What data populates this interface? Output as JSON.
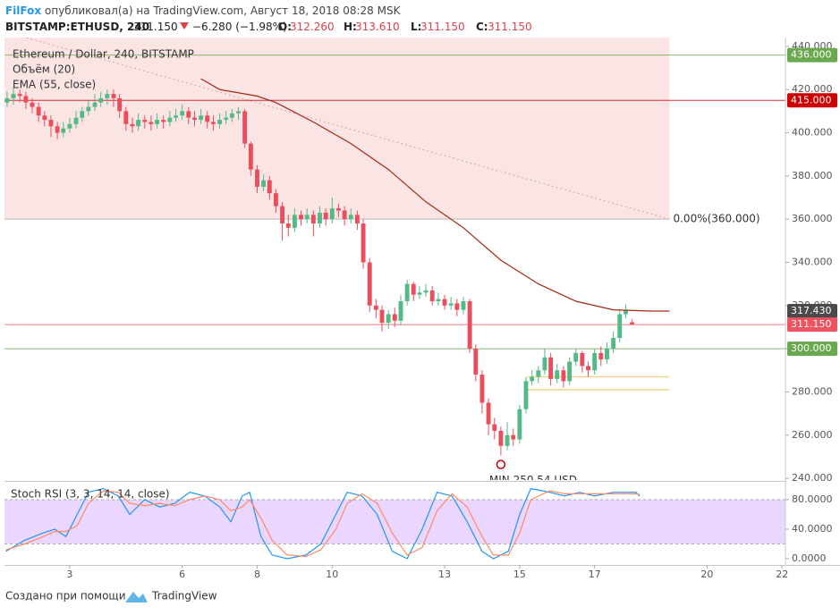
{
  "header": {
    "author": "FilFox",
    "published": "опубликовал(а) на TradingView.com, Август 18, 2018 08:28 MSK",
    "symbol": "BITSTAMP:ETHUSD, 240",
    "last": "311.150",
    "change": "−6.280 (−1.98%)",
    "ohlc": [
      {
        "label": "O:",
        "value": "312.260"
      },
      {
        "label": "H:",
        "value": "313.610"
      },
      {
        "label": "L:",
        "value": "311.150"
      },
      {
        "label": "C:",
        "value": "311.150"
      }
    ]
  },
  "footer": {
    "text": "Создано при помощи",
    "brand": "TradingView"
  },
  "chart_data": {
    "type": "candlestick",
    "title": "Ethereum / Dollar, 240, BITSTAMP",
    "volume_label": "Объём (20)",
    "up_color": "#53b987",
    "down_color": "#eb4d5c",
    "xlim": [
      1.26,
      22.09
    ],
    "xticks": [
      3,
      6,
      8,
      10,
      13,
      15,
      17,
      20,
      22
    ],
    "ylim": [
      239.2,
      444.1
    ],
    "yticks": [
      {
        "value": 240,
        "label": "240.000"
      },
      {
        "value": 260,
        "label": "260.000"
      },
      {
        "value": 280,
        "label": "280.000"
      },
      {
        "value": 300,
        "label": "300.000"
      },
      {
        "value": 320,
        "label": "320.000"
      },
      {
        "value": 340,
        "label": "340.000"
      },
      {
        "value": 360,
        "label": "360.000"
      },
      {
        "value": 380,
        "label": "380.000"
      },
      {
        "value": 400,
        "label": "400.000"
      },
      {
        "value": 420,
        "label": "420.000"
      },
      {
        "value": 440,
        "label": "440.000"
      }
    ],
    "candles": [
      [
        1.33,
        414,
        419,
        412,
        416
      ],
      [
        1.5,
        416,
        421,
        413,
        418
      ],
      [
        1.67,
        418,
        420,
        414,
        417
      ],
      [
        1.83,
        417,
        419,
        411,
        414
      ],
      [
        2,
        414,
        416,
        409,
        412
      ],
      [
        2.17,
        412,
        414,
        405,
        408
      ],
      [
        2.33,
        408,
        410,
        403,
        406
      ],
      [
        2.5,
        406,
        408,
        398,
        403
      ],
      [
        2.67,
        403,
        405,
        397,
        400
      ],
      [
        2.83,
        400,
        405,
        398,
        402
      ],
      [
        3,
        402,
        407,
        400,
        404
      ],
      [
        3.17,
        404,
        410,
        402,
        407
      ],
      [
        3.33,
        407,
        412,
        405,
        410
      ],
      [
        3.5,
        410,
        415,
        408,
        412
      ],
      [
        3.67,
        412,
        418,
        410,
        414
      ],
      [
        3.83,
        414,
        419,
        412,
        416
      ],
      [
        4,
        416,
        420,
        413,
        418
      ],
      [
        4.17,
        418,
        420,
        412,
        416
      ],
      [
        4.33,
        416,
        418,
        407,
        410
      ],
      [
        4.5,
        410,
        412,
        401,
        404
      ],
      [
        4.67,
        404,
        407,
        400,
        403
      ],
      [
        4.83,
        403,
        409,
        401,
        406
      ],
      [
        5,
        406,
        408,
        402,
        405
      ],
      [
        5.17,
        405,
        408,
        401,
        404
      ],
      [
        5.33,
        404,
        409,
        402,
        406
      ],
      [
        5.5,
        406,
        408,
        402,
        405
      ],
      [
        5.67,
        405,
        410,
        403,
        407
      ],
      [
        5.83,
        407,
        411,
        405,
        408
      ],
      [
        6,
        408,
        413,
        406,
        410
      ],
      [
        6.17,
        410,
        412,
        404,
        407
      ],
      [
        6.33,
        407,
        410,
        403,
        406
      ],
      [
        6.5,
        406,
        411,
        404,
        408
      ],
      [
        6.67,
        408,
        410,
        402,
        405
      ],
      [
        6.83,
        405,
        408,
        401,
        404
      ],
      [
        7,
        404,
        409,
        402,
        406
      ],
      [
        7.17,
        406,
        410,
        404,
        407
      ],
      [
        7.33,
        407,
        411,
        405,
        409
      ],
      [
        7.5,
        409,
        412,
        406,
        410
      ],
      [
        7.67,
        410,
        411,
        393,
        395
      ],
      [
        7.83,
        395,
        396,
        380,
        383
      ],
      [
        8,
        383,
        385,
        372,
        375
      ],
      [
        8.17,
        375,
        381,
        373,
        378
      ],
      [
        8.33,
        378,
        380,
        369,
        372
      ],
      [
        8.5,
        372,
        374,
        363,
        366
      ],
      [
        8.67,
        366,
        368,
        350,
        358
      ],
      [
        8.83,
        358,
        362,
        352,
        356
      ],
      [
        9,
        356,
        365,
        354,
        362
      ],
      [
        9.17,
        362,
        364,
        357,
        360
      ],
      [
        9.33,
        360,
        365,
        358,
        362
      ],
      [
        9.5,
        362,
        364,
        352,
        358
      ],
      [
        9.67,
        358,
        366,
        356,
        363
      ],
      [
        9.83,
        363,
        365,
        357,
        360
      ],
      [
        10,
        360,
        370,
        358,
        365
      ],
      [
        10.17,
        365,
        367,
        361,
        364
      ],
      [
        10.33,
        364,
        366,
        357,
        360
      ],
      [
        10.5,
        360,
        365,
        358,
        362
      ],
      [
        10.67,
        362,
        364,
        355,
        358
      ],
      [
        10.83,
        358,
        360,
        337,
        340
      ],
      [
        11,
        340,
        342,
        317,
        320
      ],
      [
        11.17,
        320,
        323,
        314,
        318
      ],
      [
        11.33,
        318,
        320,
        308,
        312
      ],
      [
        11.5,
        312,
        318,
        309,
        316
      ],
      [
        11.67,
        316,
        319,
        310,
        313
      ],
      [
        11.83,
        313,
        325,
        311,
        322
      ],
      [
        12,
        322,
        332,
        320,
        330
      ],
      [
        12.17,
        330,
        331,
        322,
        325
      ],
      [
        12.33,
        325,
        329,
        323,
        326
      ],
      [
        12.5,
        326,
        330,
        324,
        327
      ],
      [
        12.67,
        327,
        329,
        320,
        322
      ],
      [
        12.83,
        322,
        326,
        320,
        323
      ],
      [
        13,
        323,
        325,
        318,
        320
      ],
      [
        13.17,
        320,
        324,
        318,
        321
      ],
      [
        13.33,
        321,
        323,
        315,
        318
      ],
      [
        13.5,
        318,
        324,
        316,
        322
      ],
      [
        13.67,
        322,
        323,
        298,
        300
      ],
      [
        13.83,
        300,
        302,
        285,
        288
      ],
      [
        14,
        288,
        290,
        270,
        275
      ],
      [
        14.17,
        275,
        277,
        260,
        265
      ],
      [
        14.33,
        265,
        268,
        258,
        262
      ],
      [
        14.5,
        262,
        264,
        250.54,
        255
      ],
      [
        14.67,
        255,
        266,
        253,
        260
      ],
      [
        14.83,
        260,
        263,
        255,
        258
      ],
      [
        15,
        258,
        274,
        256,
        272
      ],
      [
        15.17,
        272,
        287,
        270,
        285
      ],
      [
        15.33,
        285,
        290,
        283,
        287
      ],
      [
        15.5,
        287,
        292,
        284,
        290
      ],
      [
        15.67,
        290,
        300,
        288,
        296
      ],
      [
        15.83,
        296,
        298,
        283,
        286
      ],
      [
        16,
        286,
        293,
        284,
        290
      ],
      [
        16.17,
        290,
        292,
        282,
        285
      ],
      [
        16.33,
        285,
        296,
        283,
        294
      ],
      [
        16.5,
        294,
        300,
        292,
        298
      ],
      [
        16.67,
        298,
        299,
        289,
        292
      ],
      [
        16.83,
        292,
        294,
        287,
        290
      ],
      [
        17,
        290,
        300,
        288,
        298
      ],
      [
        17.17,
        298,
        301,
        292,
        295
      ],
      [
        17.33,
        295,
        303,
        293,
        300
      ],
      [
        17.5,
        300,
        308,
        298,
        305
      ],
      [
        17.67,
        305,
        318,
        303,
        316
      ],
      [
        17.83,
        316,
        320.5,
        314,
        318
      ],
      [
        18,
        312.26,
        313.61,
        311.15,
        311.15
      ]
    ],
    "ema": {
      "name": "EMA (55, close)",
      "color": "#a52714",
      "x": [
        6.5,
        7,
        8,
        8.5,
        9.5,
        10.5,
        11.5,
        12.5,
        13.5,
        14.5,
        15.5,
        16.5,
        17.5,
        18.5,
        19
      ],
      "values": [
        425,
        420,
        417,
        414,
        405,
        395,
        383,
        368,
        356,
        341,
        330,
        322,
        318,
        317.43,
        317.43
      ]
    },
    "price_lines": [
      {
        "value": 436,
        "label": "436.000",
        "color": "#6aa84f",
        "line": true
      },
      {
        "value": 415,
        "label": "415.000",
        "color": "#cc0000",
        "line": true
      },
      {
        "value": 317.43,
        "label": "317.430",
        "color": "#4a4a4a",
        "line": false
      },
      {
        "value": 311.15,
        "label": "311.150",
        "color": "#ef5360",
        "line": true
      },
      {
        "value": 300,
        "label": "300.000",
        "color": "#6aa84f",
        "line": true
      }
    ],
    "zone": {
      "low": 360,
      "x_end": 19,
      "color": "#fbe4e4",
      "label": "0.00%(360.000)"
    },
    "trendline": {
      "x": [
        1.85,
        19
      ],
      "y": [
        444,
        360
      ],
      "color": "#e0a0a0"
    },
    "levels": [
      {
        "x": [
          15.2,
          19
        ],
        "y": [
          287,
          287
        ],
        "color": "#f0d58a"
      },
      {
        "x": [
          15.2,
          19
        ],
        "y": [
          281,
          281
        ],
        "color": "#f0d58a"
      }
    ],
    "min_marker": {
      "x": 14.5,
      "value": 250.54,
      "label": "MIN 250.54 USD",
      "color": "#cc0000"
    },
    "stoch": {
      "title": "Stoch RSI (3, 3, 14, 14, close)",
      "ylim": [
        -8.5,
        103
      ],
      "yticks": [
        {
          "value": 0,
          "label": "0.0000"
        },
        {
          "value": 40,
          "label": "40.0000"
        },
        {
          "value": 80,
          "label": "80.0000"
        }
      ],
      "band": [
        20,
        80
      ],
      "band_color": "#e6ccff",
      "x": [
        1.3,
        1.8,
        2.3,
        2.6,
        2.9,
        3.2,
        3.5,
        3.9,
        4.3,
        4.6,
        5,
        5.4,
        5.8,
        6.2,
        6.6,
        7,
        7.3,
        7.6,
        7.8,
        8.1,
        8.4,
        8.8,
        9.3,
        9.7,
        10.1,
        10.4,
        10.8,
        11.2,
        11.6,
        12,
        12.4,
        12.8,
        13.2,
        13.6,
        14,
        14.3,
        14.7,
        15,
        15.3,
        15.8,
        16.2,
        16.6,
        17,
        17.5,
        18.1,
        18.2
      ],
      "series": [
        {
          "color": "#2196f3",
          "values": [
            10,
            25,
            35,
            40,
            30,
            60,
            90,
            95,
            85,
            60,
            80,
            70,
            75,
            90,
            85,
            70,
            50,
            85,
            90,
            30,
            5,
            0,
            5,
            20,
            60,
            90,
            85,
            60,
            10,
            0,
            40,
            90,
            85,
            50,
            10,
            0,
            10,
            60,
            95,
            90,
            85,
            90,
            85,
            90,
            90,
            85
          ]
        },
        {
          "color": "#ff8a65",
          "values": [
            12,
            20,
            30,
            37,
            37,
            45,
            75,
            92,
            90,
            75,
            72,
            75,
            72,
            80,
            85,
            80,
            65,
            70,
            80,
            55,
            25,
            5,
            3,
            12,
            40,
            75,
            88,
            75,
            35,
            5,
            15,
            65,
            88,
            70,
            30,
            5,
            5,
            35,
            80,
            92,
            88,
            88,
            88,
            88,
            88,
            87
          ]
        }
      ]
    }
  }
}
